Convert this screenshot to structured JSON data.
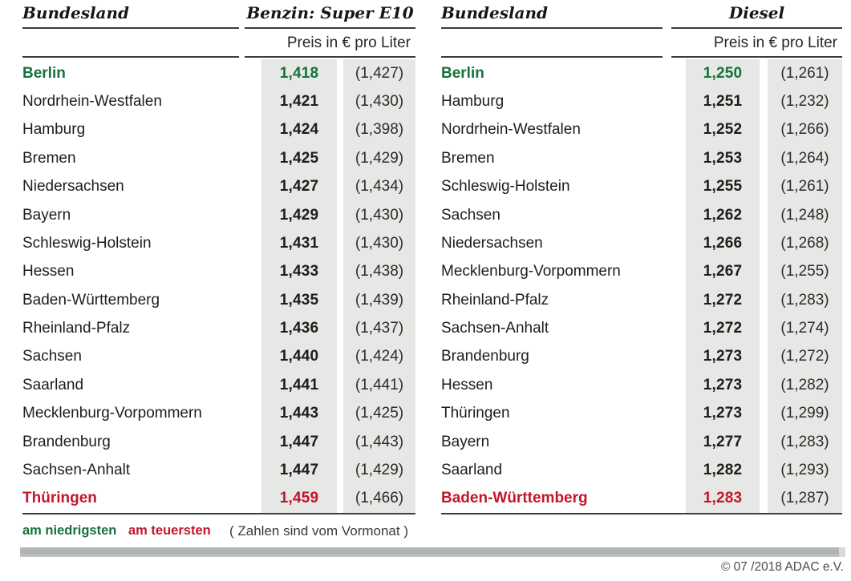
{
  "legend": {
    "lowest_label": "am niedrigsten",
    "highest_label": "am teuersten",
    "note": "( Zahlen sind vom Vormonat )"
  },
  "footer": {
    "copyright": "© 07 /2018 ADAC e.V."
  },
  "colors": {
    "lowest": "#17713b",
    "highest": "#c4152b",
    "column_bg": "#e5e8e4"
  },
  "chart_data": [
    {
      "type": "table",
      "title": "Benzin: Super E10",
      "name_header": "Bundesland",
      "unit_label": "Preis in € pro Liter",
      "columns": [
        "Bundesland",
        "Preis in € pro Liter",
        "Vormonat"
      ],
      "rows": [
        {
          "state": "Berlin",
          "price": "1,418",
          "price_value": 1.418,
          "prev": "(1,427)",
          "prev_value": 1.427,
          "highlight": "lowest"
        },
        {
          "state": "Nordrhein-Westfalen",
          "price": "1,421",
          "price_value": 1.421,
          "prev": "(1,430)",
          "prev_value": 1.43,
          "highlight": null
        },
        {
          "state": "Hamburg",
          "price": "1,424",
          "price_value": 1.424,
          "prev": "(1,398)",
          "prev_value": 1.398,
          "highlight": null
        },
        {
          "state": "Bremen",
          "price": "1,425",
          "price_value": 1.425,
          "prev": "(1,429)",
          "prev_value": 1.429,
          "highlight": null
        },
        {
          "state": "Niedersachsen",
          "price": "1,427",
          "price_value": 1.427,
          "prev": "(1,434)",
          "prev_value": 1.434,
          "highlight": null
        },
        {
          "state": "Bayern",
          "price": "1,429",
          "price_value": 1.429,
          "prev": "(1,430)",
          "prev_value": 1.43,
          "highlight": null
        },
        {
          "state": "Schleswig-Holstein",
          "price": "1,431",
          "price_value": 1.431,
          "prev": "(1,430)",
          "prev_value": 1.43,
          "highlight": null
        },
        {
          "state": "Hessen",
          "price": "1,433",
          "price_value": 1.433,
          "prev": "(1,438)",
          "prev_value": 1.438,
          "highlight": null
        },
        {
          "state": "Baden-Württemberg",
          "price": "1,435",
          "price_value": 1.435,
          "prev": "(1,439)",
          "prev_value": 1.439,
          "highlight": null
        },
        {
          "state": "Rheinland-Pfalz",
          "price": "1,436",
          "price_value": 1.436,
          "prev": "(1,437)",
          "prev_value": 1.437,
          "highlight": null
        },
        {
          "state": "Sachsen",
          "price": "1,440",
          "price_value": 1.44,
          "prev": "(1,424)",
          "prev_value": 1.424,
          "highlight": null
        },
        {
          "state": "Saarland",
          "price": "1,441",
          "price_value": 1.441,
          "prev": "(1,441)",
          "prev_value": 1.441,
          "highlight": null
        },
        {
          "state": "Mecklenburg-Vorpommern",
          "price": "1,443",
          "price_value": 1.443,
          "prev": "(1,425)",
          "prev_value": 1.425,
          "highlight": null
        },
        {
          "state": "Brandenburg",
          "price": "1,447",
          "price_value": 1.447,
          "prev": "(1,443)",
          "prev_value": 1.443,
          "highlight": null
        },
        {
          "state": "Sachsen-Anhalt",
          "price": "1,447",
          "price_value": 1.447,
          "prev": "(1,429)",
          "prev_value": 1.429,
          "highlight": null
        },
        {
          "state": "Thüringen",
          "price": "1,459",
          "price_value": 1.459,
          "prev": "(1,466)",
          "prev_value": 1.466,
          "highlight": "highest"
        }
      ]
    },
    {
      "type": "table",
      "title": "Diesel",
      "name_header": "Bundesland",
      "unit_label": "Preis in € pro Liter",
      "columns": [
        "Bundesland",
        "Preis in € pro Liter",
        "Vormonat"
      ],
      "rows": [
        {
          "state": "Berlin",
          "price": "1,250",
          "price_value": 1.25,
          "prev": "(1,261)",
          "prev_value": 1.261,
          "highlight": "lowest"
        },
        {
          "state": "Hamburg",
          "price": "1,251",
          "price_value": 1.251,
          "prev": "(1,232)",
          "prev_value": 1.232,
          "highlight": null
        },
        {
          "state": "Nordrhein-Westfalen",
          "price": "1,252",
          "price_value": 1.252,
          "prev": "(1,266)",
          "prev_value": 1.266,
          "highlight": null
        },
        {
          "state": "Bremen",
          "price": "1,253",
          "price_value": 1.253,
          "prev": "(1,264)",
          "prev_value": 1.264,
          "highlight": null
        },
        {
          "state": "Schleswig-Holstein",
          "price": "1,255",
          "price_value": 1.255,
          "prev": "(1,261)",
          "prev_value": 1.261,
          "highlight": null
        },
        {
          "state": "Sachsen",
          "price": "1,262",
          "price_value": 1.262,
          "prev": "(1,248)",
          "prev_value": 1.248,
          "highlight": null
        },
        {
          "state": "Niedersachsen",
          "price": "1,266",
          "price_value": 1.266,
          "prev": "(1,268)",
          "prev_value": 1.268,
          "highlight": null
        },
        {
          "state": "Mecklenburg-Vorpommern",
          "price": "1,267",
          "price_value": 1.267,
          "prev": "(1,255)",
          "prev_value": 1.255,
          "highlight": null
        },
        {
          "state": "Rheinland-Pfalz",
          "price": "1,272",
          "price_value": 1.272,
          "prev": "(1,283)",
          "prev_value": 1.283,
          "highlight": null
        },
        {
          "state": "Sachsen-Anhalt",
          "price": "1,272",
          "price_value": 1.272,
          "prev": "(1,274)",
          "prev_value": 1.274,
          "highlight": null
        },
        {
          "state": "Brandenburg",
          "price": "1,273",
          "price_value": 1.273,
          "prev": "(1,272)",
          "prev_value": 1.272,
          "highlight": null
        },
        {
          "state": "Hessen",
          "price": "1,273",
          "price_value": 1.273,
          "prev": "(1,282)",
          "prev_value": 1.282,
          "highlight": null
        },
        {
          "state": "Thüringen",
          "price": "1,273",
          "price_value": 1.273,
          "prev": "(1,299)",
          "prev_value": 1.299,
          "highlight": null
        },
        {
          "state": "Bayern",
          "price": "1,277",
          "price_value": 1.277,
          "prev": "(1,283)",
          "prev_value": 1.283,
          "highlight": null
        },
        {
          "state": "Saarland",
          "price": "1,282",
          "price_value": 1.282,
          "prev": "(1,293)",
          "prev_value": 1.293,
          "highlight": null
        },
        {
          "state": "Baden-Württemberg",
          "price": "1,283",
          "price_value": 1.283,
          "prev": "(1,287)",
          "prev_value": 1.287,
          "highlight": "highest"
        }
      ]
    }
  ]
}
